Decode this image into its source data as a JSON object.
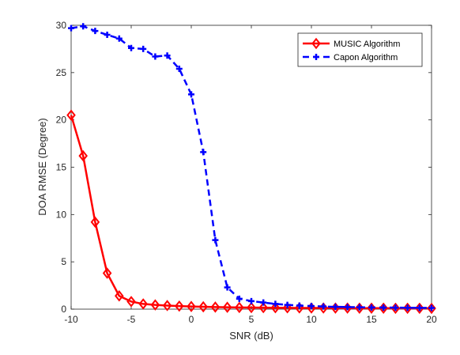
{
  "chart_data": {
    "type": "line",
    "title": "",
    "xlabel": "SNR (dB)",
    "ylabel": "DOA RMSE (Degree)",
    "xlim": [
      -10,
      20
    ],
    "ylim": [
      0,
      30
    ],
    "xticks": [
      -10,
      -5,
      0,
      5,
      10,
      15,
      20
    ],
    "yticks": [
      0,
      5,
      10,
      15,
      20,
      25,
      30
    ],
    "grid": false,
    "legend_position": "top-right",
    "x": [
      -10,
      -9,
      -8,
      -7,
      -6,
      -5,
      -4,
      -3,
      -2,
      -1,
      0,
      1,
      2,
      3,
      4,
      5,
      6,
      7,
      8,
      9,
      10,
      11,
      12,
      13,
      14,
      15,
      16,
      17,
      18,
      19,
      20
    ],
    "series": [
      {
        "name": "MUSIC Algorithm",
        "color": "#ff0000",
        "line_style": "solid",
        "marker": "diamond",
        "values": [
          20.5,
          16.2,
          9.2,
          3.8,
          1.4,
          0.8,
          0.55,
          0.45,
          0.38,
          0.32,
          0.28,
          0.25,
          0.22,
          0.2,
          0.18,
          0.17,
          0.16,
          0.15,
          0.14,
          0.13,
          0.12,
          0.12,
          0.11,
          0.11,
          0.1,
          0.1,
          0.1,
          0.09,
          0.09,
          0.09,
          0.08
        ]
      },
      {
        "name": "Capon Algorithm",
        "color": "#0000ff",
        "line_style": "dashed",
        "marker": "plus",
        "values": [
          29.7,
          29.9,
          29.4,
          29.0,
          28.6,
          27.6,
          27.5,
          26.7,
          26.8,
          25.4,
          22.7,
          16.6,
          7.3,
          2.3,
          1.1,
          0.85,
          0.7,
          0.55,
          0.45,
          0.38,
          0.32,
          0.28,
          0.24,
          0.22,
          0.2,
          0.18,
          0.17,
          0.16,
          0.15,
          0.14,
          0.13
        ]
      }
    ]
  }
}
